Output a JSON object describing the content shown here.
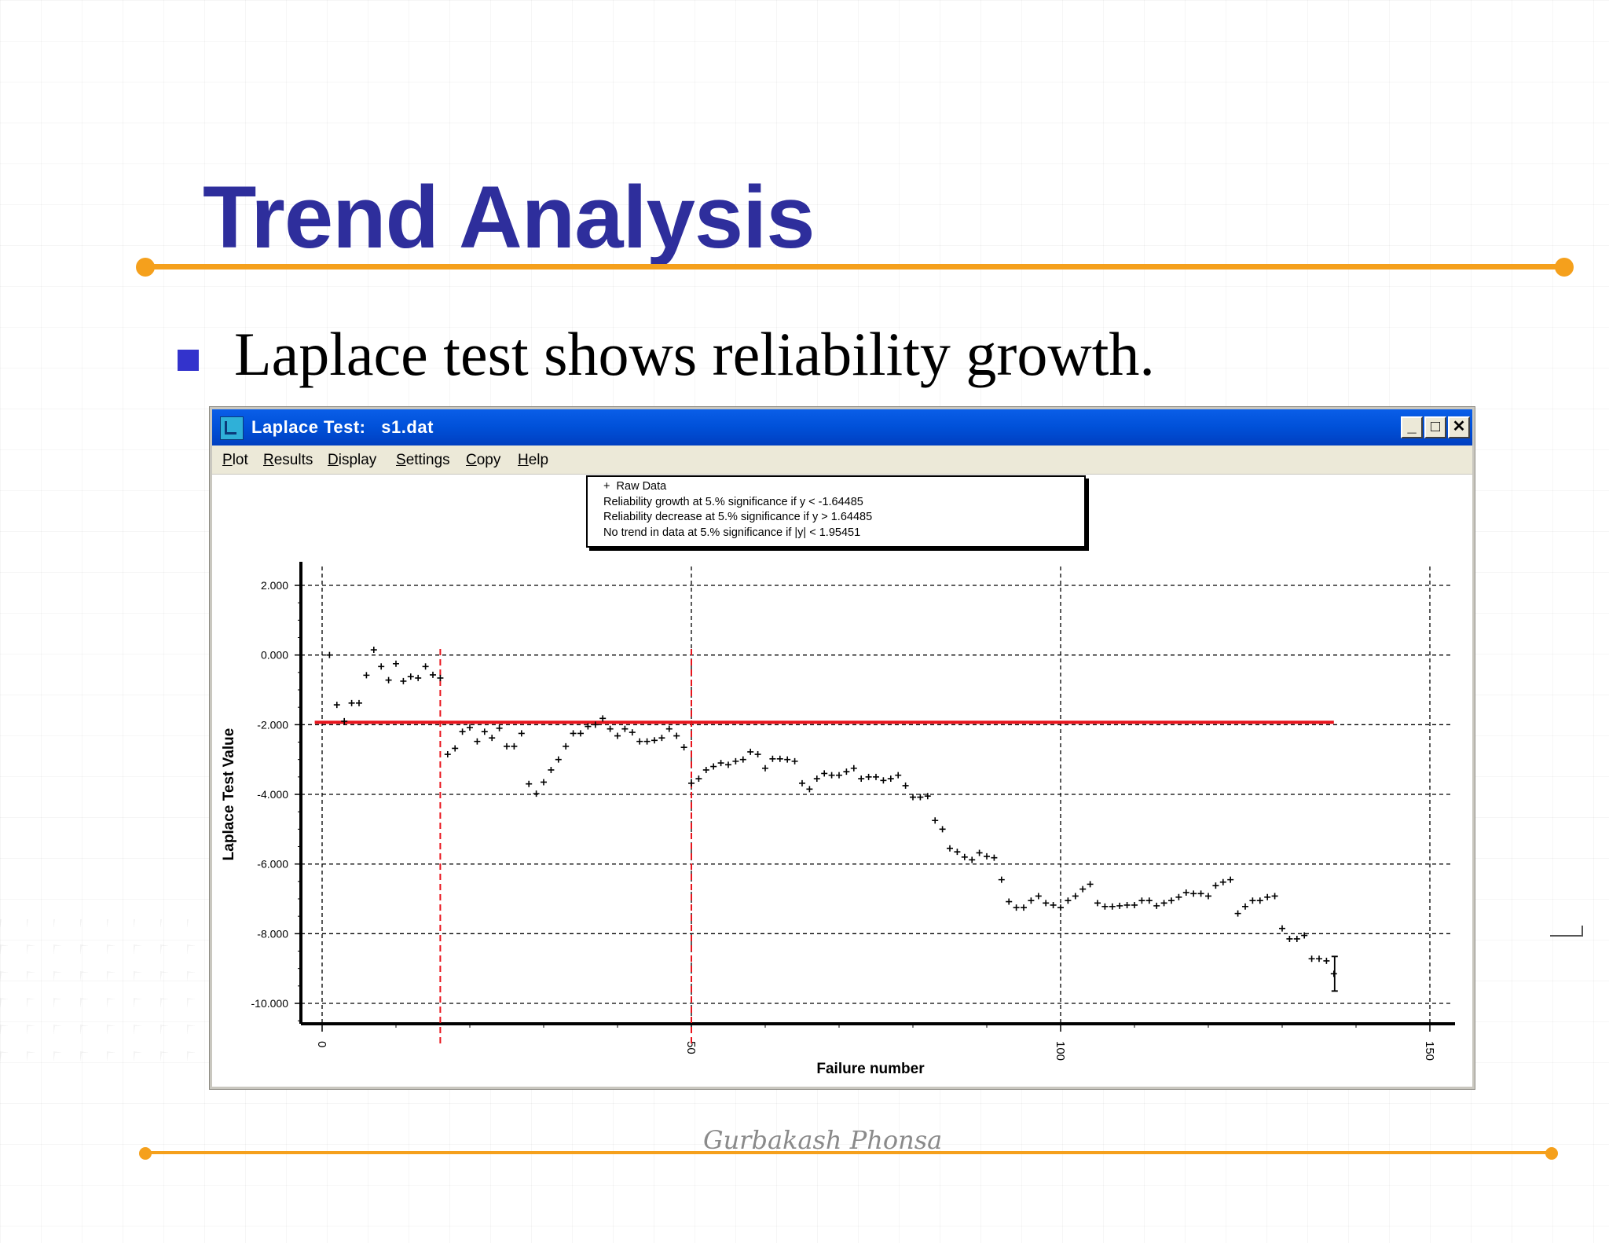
{
  "slide": {
    "title": "Trend Analysis",
    "bullet": "Laplace test shows reliability growth.",
    "footer": "Gurbakash Phonsa"
  },
  "window": {
    "title": "Laplace Test:   s1.dat",
    "controls": {
      "minimize": "_",
      "maximize": "□",
      "close": "✕"
    },
    "menu": [
      "Plot",
      "Results",
      "Display",
      "Settings",
      "Copy",
      "Help"
    ]
  },
  "legend": {
    "marker": "+",
    "lines": [
      "Raw Data",
      "Reliability growth at 5.% significance if y < -1.64485",
      "Reliability decrease at 5.% significance if y > 1.64485",
      "No trend in data at 5.% significance if |y| < 1.95451"
    ]
  },
  "chart_data": {
    "type": "scatter",
    "xlabel": "Failure number",
    "ylabel": "Laplace Test Value",
    "xlim": [
      0,
      152
    ],
    "ylim": [
      -10.6,
      2.4
    ],
    "xticks": [
      0,
      50,
      100,
      150
    ],
    "xtick_labels": [
      "0",
      "50",
      "100",
      "150"
    ],
    "yticks": [
      2,
      0,
      -2,
      -4,
      -6,
      -8,
      -10
    ],
    "ytick_labels": [
      "2.000",
      "0.000",
      "-2.000",
      "-4.000",
      "-6.000",
      "-8.000",
      "-10.000"
    ],
    "grid": true,
    "threshold_line": {
      "y": -1.93,
      "x_range": [
        -1,
        137
      ],
      "color": "#e8141c"
    },
    "vertical_markers": {
      "x": [
        16,
        50
      ],
      "color": "#e8141c"
    },
    "series": [
      {
        "name": "Raw Data",
        "points": [
          [
            1,
            0.0
          ],
          [
            2,
            -1.43
          ],
          [
            3,
            -1.9
          ],
          [
            4,
            -1.38
          ],
          [
            5,
            -1.38
          ],
          [
            6,
            -0.58
          ],
          [
            7,
            0.15
          ],
          [
            8,
            -0.33
          ],
          [
            9,
            -0.72
          ],
          [
            10,
            -0.25
          ],
          [
            11,
            -0.75
          ],
          [
            12,
            -0.62
          ],
          [
            13,
            -0.66
          ],
          [
            14,
            -0.33
          ],
          [
            15,
            -0.57
          ],
          [
            16,
            -0.66
          ],
          [
            17,
            -2.85
          ],
          [
            18,
            -2.68
          ],
          [
            19,
            -2.2
          ],
          [
            20,
            -2.08
          ],
          [
            21,
            -2.48
          ],
          [
            22,
            -2.2
          ],
          [
            23,
            -2.38
          ],
          [
            24,
            -2.1
          ],
          [
            25,
            -2.62
          ],
          [
            26,
            -2.62
          ],
          [
            27,
            -2.25
          ],
          [
            28,
            -3.7
          ],
          [
            29,
            -3.98
          ],
          [
            30,
            -3.65
          ],
          [
            31,
            -3.3
          ],
          [
            32,
            -3.0
          ],
          [
            33,
            -2.62
          ],
          [
            34,
            -2.25
          ],
          [
            35,
            -2.25
          ],
          [
            36,
            -2.05
          ],
          [
            37,
            -2.0
          ],
          [
            38,
            -1.82
          ],
          [
            39,
            -2.12
          ],
          [
            40,
            -2.32
          ],
          [
            41,
            -2.12
          ],
          [
            42,
            -2.22
          ],
          [
            43,
            -2.48
          ],
          [
            44,
            -2.48
          ],
          [
            45,
            -2.45
          ],
          [
            46,
            -2.38
          ],
          [
            47,
            -2.12
          ],
          [
            48,
            -2.32
          ],
          [
            49,
            -2.65
          ],
          [
            50,
            -3.68
          ],
          [
            51,
            -3.55
          ],
          [
            52,
            -3.3
          ],
          [
            53,
            -3.2
          ],
          [
            54,
            -3.1
          ],
          [
            55,
            -3.15
          ],
          [
            56,
            -3.05
          ],
          [
            57,
            -3.0
          ],
          [
            58,
            -2.78
          ],
          [
            59,
            -2.85
          ],
          [
            60,
            -3.25
          ],
          [
            61,
            -2.98
          ],
          [
            62,
            -2.98
          ],
          [
            63,
            -3.0
          ],
          [
            64,
            -3.05
          ],
          [
            65,
            -3.68
          ],
          [
            66,
            -3.85
          ],
          [
            67,
            -3.55
          ],
          [
            68,
            -3.4
          ],
          [
            69,
            -3.45
          ],
          [
            70,
            -3.45
          ],
          [
            71,
            -3.35
          ],
          [
            72,
            -3.25
          ],
          [
            73,
            -3.55
          ],
          [
            74,
            -3.5
          ],
          [
            75,
            -3.5
          ],
          [
            76,
            -3.6
          ],
          [
            77,
            -3.55
          ],
          [
            78,
            -3.45
          ],
          [
            79,
            -3.75
          ],
          [
            80,
            -4.08
          ],
          [
            81,
            -4.08
          ],
          [
            82,
            -4.05
          ],
          [
            83,
            -4.75
          ],
          [
            84,
            -5.0
          ],
          [
            85,
            -5.55
          ],
          [
            86,
            -5.65
          ],
          [
            87,
            -5.8
          ],
          [
            88,
            -5.88
          ],
          [
            89,
            -5.68
          ],
          [
            90,
            -5.78
          ],
          [
            91,
            -5.82
          ],
          [
            92,
            -6.45
          ],
          [
            93,
            -7.08
          ],
          [
            94,
            -7.25
          ],
          [
            95,
            -7.25
          ],
          [
            96,
            -7.05
          ],
          [
            97,
            -6.92
          ],
          [
            98,
            -7.12
          ],
          [
            99,
            -7.18
          ],
          [
            100,
            -7.25
          ],
          [
            101,
            -7.05
          ],
          [
            102,
            -6.92
          ],
          [
            103,
            -6.72
          ],
          [
            104,
            -6.58
          ],
          [
            105,
            -7.12
          ],
          [
            106,
            -7.22
          ],
          [
            107,
            -7.22
          ],
          [
            108,
            -7.2
          ],
          [
            109,
            -7.18
          ],
          [
            110,
            -7.18
          ],
          [
            111,
            -7.05
          ],
          [
            112,
            -7.05
          ],
          [
            113,
            -7.2
          ],
          [
            114,
            -7.12
          ],
          [
            115,
            -7.05
          ],
          [
            116,
            -6.95
          ],
          [
            117,
            -6.82
          ],
          [
            118,
            -6.85
          ],
          [
            119,
            -6.85
          ],
          [
            120,
            -6.92
          ],
          [
            121,
            -6.62
          ],
          [
            122,
            -6.52
          ],
          [
            123,
            -6.45
          ],
          [
            124,
            -7.42
          ],
          [
            125,
            -7.22
          ],
          [
            126,
            -7.05
          ],
          [
            127,
            -7.05
          ],
          [
            128,
            -6.95
          ],
          [
            129,
            -6.92
          ],
          [
            130,
            -7.85
          ],
          [
            131,
            -8.15
          ],
          [
            132,
            -8.15
          ],
          [
            133,
            -8.05
          ],
          [
            134,
            -8.72
          ],
          [
            135,
            -8.72
          ],
          [
            136,
            -8.78
          ],
          [
            137,
            -9.15
          ]
        ]
      }
    ]
  }
}
